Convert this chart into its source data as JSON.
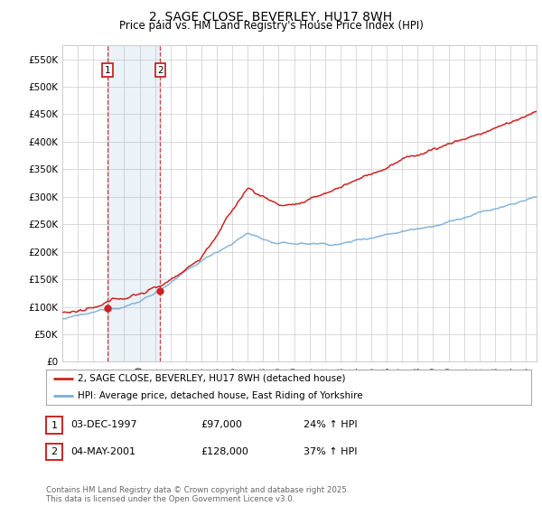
{
  "title": "2, SAGE CLOSE, BEVERLEY, HU17 8WH",
  "subtitle": "Price paid vs. HM Land Registry's House Price Index (HPI)",
  "ylabel_values": [
    0,
    50000,
    100000,
    150000,
    200000,
    250000,
    300000,
    350000,
    400000,
    450000,
    500000,
    550000
  ],
  "ylim": [
    0,
    575000
  ],
  "xmin": 1995.3,
  "xmax": 2025.7,
  "purchase1_year": 1997.92,
  "purchase1_price": 97000,
  "purchase1_label": "1",
  "purchase2_year": 2001.34,
  "purchase2_price": 128000,
  "purchase2_label": "2",
  "sale_color": "#cc2222",
  "hpi_color": "#7aadd4",
  "annotation_box_color": "#cc2222",
  "legend_label_red": "2, SAGE CLOSE, BEVERLEY, HU17 8WH (detached house)",
  "legend_label_blue": "HPI: Average price, detached house, East Riding of Yorkshire",
  "table_rows": [
    {
      "num": "1",
      "date": "03-DEC-1997",
      "price": "£97,000",
      "hpi": "24% ↑ HPI"
    },
    {
      "num": "2",
      "date": "04-MAY-2001",
      "price": "£128,000",
      "hpi": "37% ↑ HPI"
    }
  ],
  "footnote": "Contains HM Land Registry data © Crown copyright and database right 2025.\nThis data is licensed under the Open Government Licence v3.0.",
  "background_color": "#ffffff",
  "grid_color": "#cccccc",
  "title_fontsize": 10,
  "subtitle_fontsize": 8.5,
  "tick_fontsize": 7.5
}
